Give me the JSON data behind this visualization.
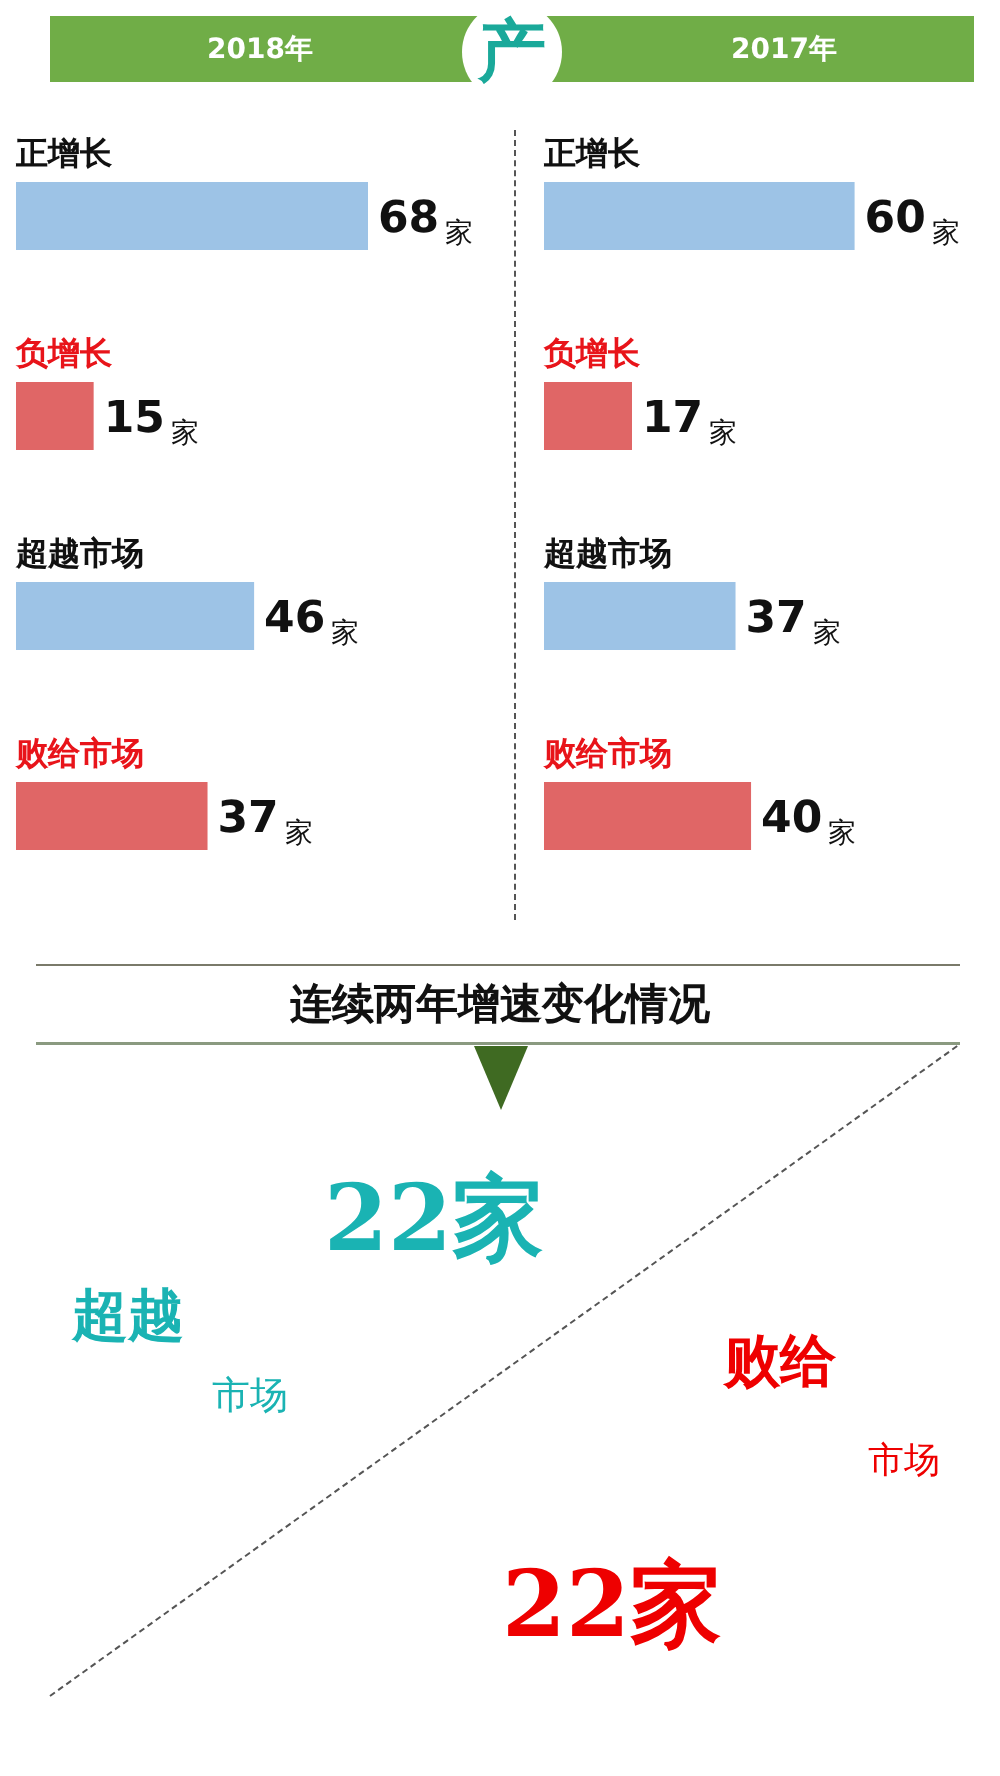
{
  "chart_data": [
    {
      "type": "bar",
      "orientation": "horizontal",
      "title": "2018年",
      "annotations": [
        "产"
      ],
      "categories": [
        "正增长",
        "负增长",
        "超越市场",
        "败给市场"
      ],
      "values": [
        68,
        15,
        46,
        37
      ],
      "colors": [
        "#9dc3e6",
        "#e06666",
        "#9dc3e6",
        "#e06666"
      ],
      "value_labels": [
        "68$_{家}$",
        "15$_{家}$",
        "46$_{家}$",
        "37$_{家}$"
      ]
    },
    {
      "type": "bar",
      "orientation": "horizontal",
      "title": "2017年",
      "categories": [
        "正增长",
        "负增长",
        "超越市场",
        "败给市场"
      ],
      "values": [
        60,
        17,
        37,
        40
      ],
      "colors": [
        "#9dc3e6",
        "#e06666",
        "#9dc3e6",
        "#e06666"
      ],
      "value_labels": [
        "60$_{家}$",
        "17$_{家}$",
        "37$_{家}$",
        "40$_{家}$"
      ]
    },
    {
      "type": "other",
      "title": "连续两年增速变化情况",
      "annotations": [
        "22家",
        "超越",
        "市场",
        "败给",
        "市场",
        "22家"
      ]
    }
  ]
}
